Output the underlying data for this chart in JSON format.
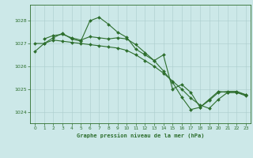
{
  "title": "Graphe pression niveau de la mer (hPa)",
  "background_color": "#cce8e8",
  "grid_color": "#aacccc",
  "line_color": "#2d6e2d",
  "xlim": [
    -0.5,
    23.5
  ],
  "ylim": [
    1023.5,
    1028.7
  ],
  "yticks": [
    1024,
    1025,
    1026,
    1027,
    1028
  ],
  "xticks": [
    0,
    1,
    2,
    3,
    4,
    5,
    6,
    7,
    8,
    9,
    10,
    11,
    12,
    13,
    14,
    15,
    16,
    17,
    18,
    19,
    20,
    21,
    22,
    23
  ],
  "line1_x": [
    0,
    1,
    2,
    3,
    4,
    5,
    6,
    7,
    8,
    9,
    10,
    11,
    12,
    13,
    14,
    15,
    16,
    17,
    18,
    19,
    20,
    21,
    22,
    23
  ],
  "line1_y": [
    1026.65,
    1027.0,
    1027.25,
    1027.45,
    1027.2,
    1027.1,
    1028.0,
    1028.15,
    1027.85,
    1027.5,
    1027.27,
    1026.75,
    1026.5,
    1026.25,
    1025.8,
    1025.3,
    1024.65,
    1024.1,
    1024.2,
    1024.55,
    1024.9,
    1024.85,
    1024.85,
    1024.7
  ],
  "line2_x": [
    0,
    1,
    2,
    3,
    4,
    5,
    6,
    7,
    8,
    9,
    10,
    11,
    12,
    13,
    14,
    15,
    16,
    17,
    18,
    19,
    20,
    21,
    22,
    23
  ],
  "line2_y": [
    1027.0,
    1027.0,
    1027.15,
    1027.1,
    1027.05,
    1027.0,
    1026.95,
    1026.9,
    1026.85,
    1026.8,
    1026.7,
    1026.5,
    1026.25,
    1026.0,
    1025.7,
    1025.35,
    1025.0,
    1024.6,
    1024.3,
    1024.15,
    1024.55,
    1024.85,
    1024.85,
    1024.75
  ],
  "line3_x": [
    1,
    2,
    3,
    4,
    5,
    6,
    7,
    8,
    9,
    10,
    11,
    12,
    13,
    14,
    15,
    16,
    17,
    18,
    19,
    20,
    21,
    22,
    23
  ],
  "line3_y": [
    1027.2,
    1027.35,
    1027.4,
    1027.25,
    1027.15,
    1027.3,
    1027.25,
    1027.2,
    1027.25,
    1027.2,
    1026.95,
    1026.6,
    1026.25,
    1026.5,
    1025.0,
    1025.2,
    1024.85,
    1024.2,
    1024.5,
    1024.85,
    1024.9,
    1024.9,
    1024.75
  ]
}
